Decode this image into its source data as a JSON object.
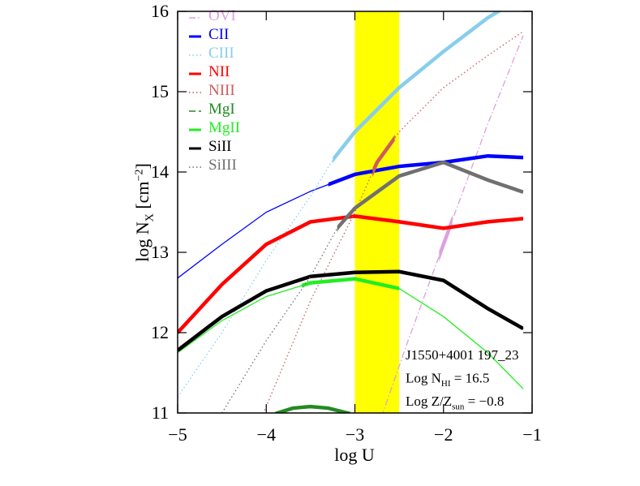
{
  "chart_data": {
    "type": "line",
    "xlabel": "log U",
    "ylabel": {
      "main": "log N",
      "sub": "X",
      "tail": " [cm",
      "sup": "−2",
      "end": "]"
    },
    "xlim": [
      -5,
      -1
    ],
    "ylim": [
      11,
      16
    ],
    "xticks": [
      {
        "value": -5,
        "label": "−5"
      },
      {
        "value": -4,
        "label": "−4"
      },
      {
        "value": -3,
        "label": "−3"
      },
      {
        "value": -2,
        "label": "−2"
      },
      {
        "value": -1,
        "label": "−1"
      }
    ],
    "yticks": [
      11,
      12,
      13,
      14,
      15,
      16
    ],
    "legend": "top-left",
    "highlight": {
      "xlim": [
        -3,
        -2.5
      ],
      "color": "#ffff00"
    },
    "series": [
      {
        "name": "OVI",
        "color": "#dda0dd",
        "dash": "dashdot",
        "x": [
          -2.7,
          -2.4,
          -2.0,
          -1.5,
          -1.1
        ],
        "values": [
          10.95,
          11.9,
          13.1,
          14.6,
          15.7
        ],
        "thick_range": [
          -2.05,
          -1.9
        ]
      },
      {
        "name": "CII",
        "color": "#0000ff",
        "dash": "solid",
        "x": [
          -5,
          -4.5,
          -4,
          -3.5,
          -3,
          -2.5,
          -2,
          -1.5,
          -1.1
        ],
        "values": [
          12.68,
          13.1,
          13.5,
          13.76,
          13.97,
          14.07,
          14.12,
          14.2,
          14.18
        ],
        "thick_range": [
          -3.3,
          -1.1
        ]
      },
      {
        "name": "CIII",
        "color": "#87ceeb",
        "dash": "dotted",
        "x": [
          -5,
          -4.5,
          -4,
          -3.5,
          -3.25,
          -3,
          -2.5,
          -2,
          -1.5,
          -1.35
        ],
        "values": [
          11.2,
          12.0,
          12.9,
          13.7,
          14.15,
          14.5,
          15.05,
          15.5,
          15.92,
          16.02
        ],
        "thick_range": [
          -3.25,
          -1.1
        ]
      },
      {
        "name": "NII",
        "color": "#ff0000",
        "dash": "solid",
        "x": [
          -5,
          -4.5,
          -4,
          -3.5,
          -3,
          -2.5,
          -2,
          -1.5,
          -1.1
        ],
        "values": [
          12.0,
          12.6,
          13.1,
          13.38,
          13.45,
          13.38,
          13.3,
          13.38,
          13.42
        ],
        "thick_range": [
          -5,
          -1.1
        ]
      },
      {
        "name": "NIII",
        "color": "#cd5c5c",
        "dash": "dotted",
        "x": [
          -4.05,
          -3.5,
          -3,
          -2.75,
          -2.5,
          -2,
          -1.5,
          -1.1
        ],
        "values": [
          10.95,
          12.4,
          13.5,
          14.12,
          14.5,
          15.05,
          15.45,
          15.75
        ],
        "thick_range": [
          -2.8,
          -2.55
        ]
      },
      {
        "name": "MgI",
        "color": "#228b22",
        "dash": "dashed",
        "x": [
          -3.9,
          -3.7,
          -3.5,
          -3.3,
          -3.05
        ],
        "values": [
          10.99,
          11.06,
          11.08,
          11.06,
          10.99
        ],
        "thick_range": [
          -3.9,
          -3.05
        ]
      },
      {
        "name": "MgII",
        "color": "#22ee22",
        "dash": "solid",
        "x": [
          -5,
          -4.5,
          -4,
          -3.5,
          -3,
          -2.5,
          -2,
          -1.5,
          -1.1
        ],
        "values": [
          11.75,
          12.15,
          12.45,
          12.62,
          12.67,
          12.55,
          12.2,
          11.75,
          11.3
        ],
        "thick_range": [
          -3.6,
          -2.5
        ]
      },
      {
        "name": "SiII",
        "color": "#000000",
        "dash": "solid",
        "x": [
          -5,
          -4.5,
          -4,
          -3.5,
          -3,
          -2.5,
          -2,
          -1.5,
          -1.1
        ],
        "values": [
          11.78,
          12.2,
          12.52,
          12.7,
          12.75,
          12.76,
          12.65,
          12.3,
          12.05
        ],
        "thick_range": [
          -5,
          -1.1
        ]
      },
      {
        "name": "SiIII",
        "color": "#707070",
        "dash": "dotted",
        "x": [
          -4.5,
          -4,
          -3.5,
          -3.2,
          -3,
          -2.5,
          -2,
          -1.5,
          -1.1
        ],
        "values": [
          11.0,
          11.9,
          12.7,
          13.3,
          13.55,
          13.95,
          14.12,
          13.9,
          13.75
        ],
        "thick_range": [
          -3.2,
          -1.1
        ]
      }
    ],
    "annotations": [
      {
        "main": "J1550+4001 197_23"
      },
      {
        "main": "Log N",
        "sub": "HI",
        "tail": " = 16.5"
      },
      {
        "main": "Log Z/Z",
        "sub": "sun",
        "tail": " = −0.8"
      }
    ]
  }
}
